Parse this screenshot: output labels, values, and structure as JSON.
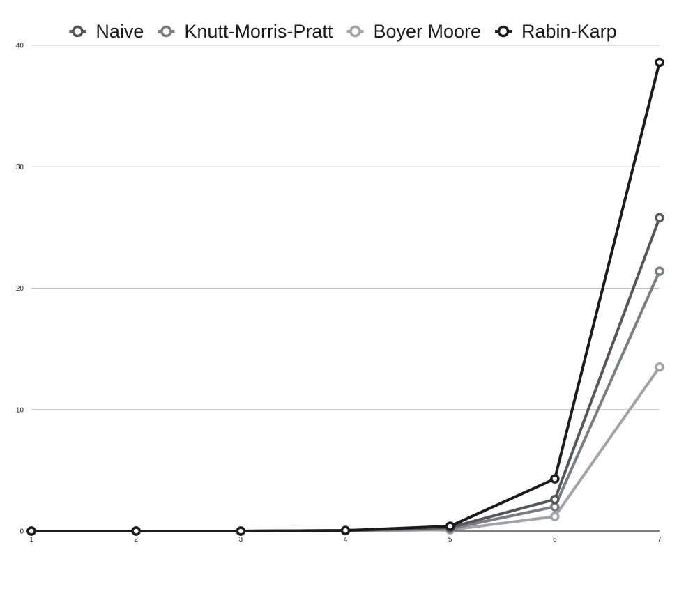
{
  "chart_data": {
    "type": "line",
    "title": "",
    "xlabel": "",
    "ylabel": "",
    "x": [
      1,
      2,
      3,
      4,
      5,
      6,
      7
    ],
    "ylim": [
      0,
      40
    ],
    "yticks": [
      0,
      10,
      20,
      30,
      40
    ],
    "grid": true,
    "legend_position": "top",
    "series": [
      {
        "name": "Naive",
        "color": "#55575b",
        "values": [
          0,
          0,
          0,
          0.05,
          0.3,
          2.6,
          25.8
        ]
      },
      {
        "name": "Knutt-Morris-Pratt",
        "color": "#7a7d82",
        "values": [
          0,
          0,
          0,
          0.04,
          0.2,
          2.0,
          21.4
        ]
      },
      {
        "name": "Boyer Moore",
        "color": "#a0a4a9",
        "values": [
          0,
          0,
          0,
          0.02,
          0.1,
          1.2,
          13.5
        ]
      },
      {
        "name": "Rabin-Karp",
        "color": "#1c1c1c",
        "values": [
          0,
          0,
          0,
          0.05,
          0.4,
          4.3,
          38.6
        ]
      }
    ]
  }
}
